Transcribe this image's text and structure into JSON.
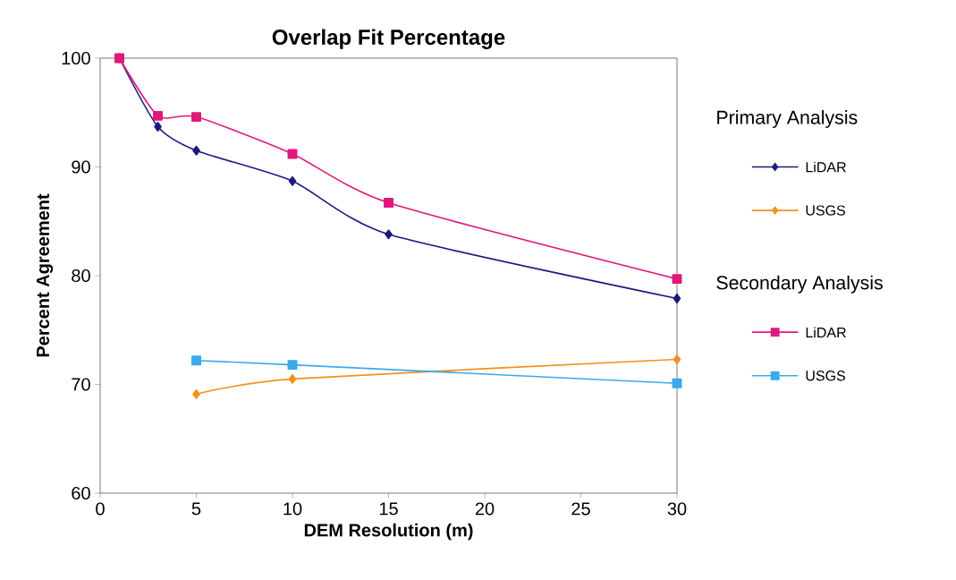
{
  "chart_data": {
    "type": "line",
    "title": "Overlap Fit Percentage",
    "xlabel": "DEM Resolution (m)",
    "ylabel": "Percent Agreement",
    "xlim": [
      0,
      30
    ],
    "xticks": [
      0,
      5,
      10,
      15,
      20,
      25,
      30
    ],
    "ylim": [
      60,
      100
    ],
    "yticks": [
      60,
      70,
      80,
      90,
      100
    ],
    "grid": false,
    "legend": "right",
    "line_style": "solid",
    "annotations": [
      "Primary Analysis",
      "Secondary Analysis"
    ],
    "series": [
      {
        "name": "LiDAR",
        "color": "#1a1a80",
        "marker": "diamond",
        "x": [
          1,
          3,
          5,
          10,
          15,
          30
        ],
        "values": [
          100,
          93.7,
          91.5,
          88.7,
          83.8,
          77.9
        ]
      },
      {
        "name": "USGS",
        "color": "#f39020",
        "marker": "diamond",
        "x": [
          5,
          10,
          30
        ],
        "values": [
          69.1,
          70.5,
          72.3
        ]
      },
      {
        "name": "LiDAR",
        "color": "#e0187a",
        "marker": "square",
        "x": [
          1,
          3,
          5,
          10,
          15,
          30
        ],
        "values": [
          100,
          94.7,
          94.6,
          91.2,
          86.7,
          79.7
        ]
      },
      {
        "name": "USGS",
        "color": "#3aaae8",
        "marker": "square",
        "x": [
          5,
          10,
          30
        ],
        "values": [
          72.2,
          71.8,
          70.1
        ]
      }
    ]
  }
}
